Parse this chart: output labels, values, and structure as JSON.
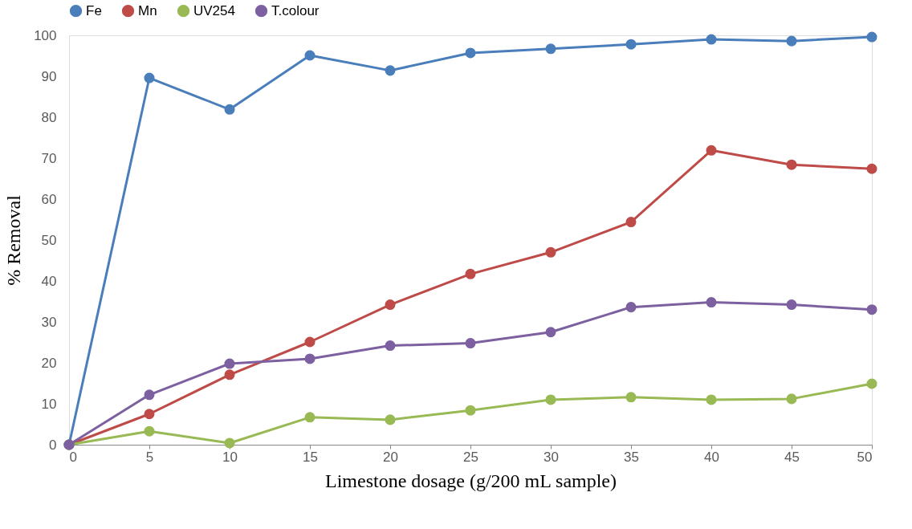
{
  "chart_data": {
    "type": "line",
    "xlabel": "Limestone dosage (g/200 mL sample)",
    "ylabel": "% Removal",
    "x": [
      0,
      5,
      10,
      15,
      20,
      25,
      30,
      35,
      40,
      45,
      50
    ],
    "series": [
      {
        "name": "Fe",
        "color": "#4a7ebb",
        "values": [
          0,
          89.6,
          81.9,
          95.1,
          91.4,
          95.7,
          96.7,
          97.8,
          99.0,
          98.6,
          99.6
        ]
      },
      {
        "name": "Mn",
        "color": "#be4b48",
        "values": [
          0,
          7.5,
          17.1,
          25.1,
          34.2,
          41.7,
          47.0,
          54.4,
          71.9,
          68.4,
          67.4
        ]
      },
      {
        "name": "UV254",
        "color": "#98b954",
        "values": [
          0,
          3.3,
          0.4,
          6.7,
          6.1,
          8.4,
          11.0,
          11.6,
          11.0,
          11.2,
          14.9
        ]
      },
      {
        "name": "T.colour",
        "color": "#7d60a0",
        "values": [
          0,
          12.2,
          19.8,
          21.0,
          24.2,
          24.8,
          27.5,
          33.6,
          34.8,
          34.2,
          33.0
        ]
      }
    ],
    "xlim": [
      0,
      50
    ],
    "xticks": [
      0,
      5,
      10,
      15,
      20,
      25,
      30,
      35,
      40,
      45,
      50
    ],
    "ylim": [
      0,
      100
    ],
    "yticks": [
      0,
      10,
      20,
      30,
      40,
      50,
      60,
      70,
      80,
      90,
      100
    ],
    "grid": false,
    "legend": "top",
    "marker": "circle",
    "line_style": "solid"
  }
}
